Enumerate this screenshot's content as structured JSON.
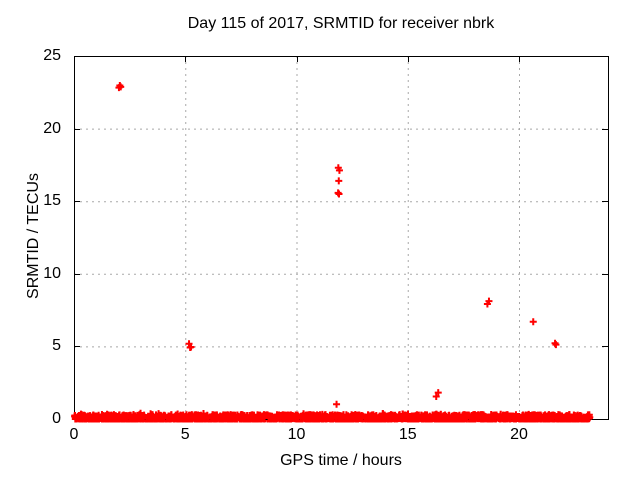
{
  "chart_data": {
    "type": "scatter",
    "title": "Day 115 of 2017, SRMTID for receiver nbrk",
    "xlabel": "GPS time / hours",
    "ylabel": "SRMTID / TECUs",
    "xlim": [
      0,
      24
    ],
    "ylim": [
      0,
      25
    ],
    "x_ticks": [
      0,
      5,
      10,
      15,
      20
    ],
    "y_ticks": [
      0,
      5,
      10,
      15,
      20,
      25
    ],
    "x_grid_lines": [
      5,
      10,
      15,
      20
    ],
    "y_grid_lines": [
      5,
      10,
      15,
      20
    ],
    "grid": true,
    "legend": "none",
    "marker": "plus",
    "series_color": "#ff0000",
    "grid_color": "#a8a8a8",
    "border_color": "#000000",
    "outlier_points": [
      [
        2.02,
        22.82
      ],
      [
        2.06,
        22.97
      ],
      [
        2.1,
        22.87
      ],
      [
        5.17,
        5.18
      ],
      [
        5.22,
        4.92
      ],
      [
        5.26,
        4.96
      ],
      [
        11.88,
        17.3
      ],
      [
        11.93,
        17.12
      ],
      [
        11.9,
        16.4
      ],
      [
        11.87,
        15.57
      ],
      [
        11.91,
        15.5
      ],
      [
        11.8,
        1.02
      ],
      [
        16.28,
        1.55
      ],
      [
        16.37,
        1.82
      ],
      [
        18.58,
        7.92
      ],
      [
        18.65,
        8.12
      ],
      [
        20.64,
        6.7
      ],
      [
        21.62,
        5.22
      ],
      [
        21.66,
        5.12
      ]
    ],
    "baseline_band": {
      "comment_visible_content": "dense band of near-zero SRMTID values along entire day",
      "x_min": 0.02,
      "x_max": 23.2,
      "y_min": 0.0,
      "y_max": 0.42,
      "count": 2400,
      "seed": 115
    }
  }
}
